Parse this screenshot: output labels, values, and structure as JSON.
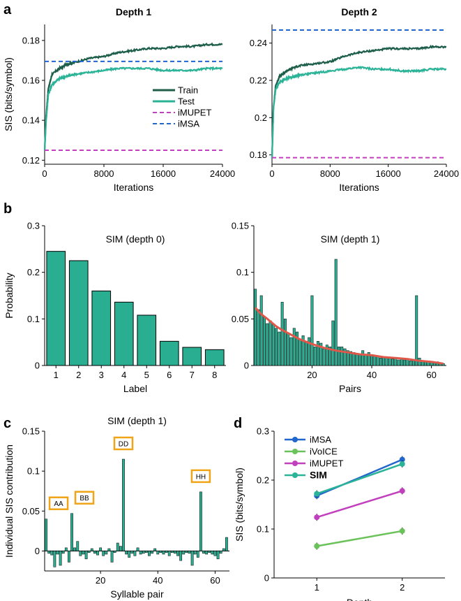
{
  "panels": {
    "a": {
      "label": "a"
    },
    "b": {
      "label": "b"
    },
    "c": {
      "label": "c"
    },
    "d": {
      "label": "d"
    }
  },
  "colors": {
    "train": "#1d5e4a",
    "test": "#2bb397",
    "imupet": "#c23fbd",
    "imsa": "#2166cc",
    "bar": "#2aae92",
    "curve": "#e0584a",
    "ivoice": "#6cc25a",
    "sim": "#2bb397",
    "callout": "#f0a418"
  },
  "chart_data": [
    {
      "id": "a1",
      "type": "line",
      "title": "Depth 1",
      "xlabel": "Iterations",
      "ylabel": "SIS (bits/symbol)",
      "xlim": [
        0,
        24000
      ],
      "ylim": [
        0.118,
        0.188
      ],
      "xticks": [
        0,
        8000,
        16000,
        24000
      ],
      "xtick_labels": [
        "0",
        "8000",
        "16000",
        "24000"
      ],
      "yticks": [
        0.12,
        0.14,
        0.16,
        0.18
      ],
      "ytick_labels": [
        "0.12",
        "0.14",
        "0.16",
        "0.18"
      ],
      "series": [
        {
          "name": "Train",
          "key": "train",
          "x": [
            0,
            200,
            500,
            1000,
            2000,
            3000,
            4000,
            6000,
            8000,
            10000,
            12000,
            14000,
            16000,
            18000,
            20000,
            22000,
            24000
          ],
          "y": [
            0.125,
            0.142,
            0.156,
            0.163,
            0.166,
            0.168,
            0.169,
            0.171,
            0.172,
            0.174,
            0.175,
            0.176,
            0.176,
            0.177,
            0.177,
            0.178,
            0.178
          ]
        },
        {
          "name": "Test",
          "key": "test",
          "x": [
            0,
            200,
            500,
            1000,
            2000,
            3000,
            4000,
            6000,
            8000,
            10000,
            12000,
            14000,
            16000,
            18000,
            20000,
            22000,
            24000
          ],
          "y": [
            0.125,
            0.14,
            0.153,
            0.158,
            0.161,
            0.162,
            0.163,
            0.164,
            0.165,
            0.166,
            0.166,
            0.166,
            0.165,
            0.165,
            0.165,
            0.166,
            0.166
          ]
        },
        {
          "name": "iMUPET",
          "key": "imupet",
          "dashed": true,
          "x": [
            0,
            24000
          ],
          "y": [
            0.125,
            0.125
          ]
        },
        {
          "name": "iMSA",
          "key": "imsa",
          "dashed": true,
          "x": [
            0,
            24000
          ],
          "y": [
            0.1695,
            0.1695
          ]
        }
      ],
      "legend": [
        "Train",
        "Test",
        "iMUPET",
        "iMSA"
      ]
    },
    {
      "id": "a2",
      "type": "line",
      "title": "Depth 2",
      "xlabel": "Iterations",
      "ylabel": "",
      "xlim": [
        0,
        24000
      ],
      "ylim": [
        0.175,
        0.25
      ],
      "xticks": [
        0,
        8000,
        16000,
        24000
      ],
      "xtick_labels": [
        "0",
        "8000",
        "16000",
        "24000"
      ],
      "yticks": [
        0.18,
        0.2,
        0.22,
        0.24
      ],
      "ytick_labels": [
        "0.18",
        "0.2",
        "0.22",
        "0.24"
      ],
      "series": [
        {
          "name": "Train",
          "key": "train",
          "x": [
            0,
            200,
            500,
            1000,
            2000,
            3000,
            4000,
            6000,
            8000,
            10000,
            12000,
            14000,
            16000,
            18000,
            20000,
            22000,
            24000
          ],
          "y": [
            0.178,
            0.205,
            0.217,
            0.222,
            0.225,
            0.227,
            0.228,
            0.229,
            0.23,
            0.233,
            0.235,
            0.236,
            0.237,
            0.237,
            0.237,
            0.238,
            0.238
          ]
        },
        {
          "name": "Test",
          "key": "test",
          "x": [
            0,
            200,
            500,
            1000,
            2000,
            3000,
            4000,
            6000,
            8000,
            10000,
            12000,
            14000,
            16000,
            18000,
            20000,
            22000,
            24000
          ],
          "y": [
            0.178,
            0.205,
            0.215,
            0.219,
            0.221,
            0.222,
            0.223,
            0.224,
            0.225,
            0.226,
            0.227,
            0.226,
            0.226,
            0.225,
            0.225,
            0.226,
            0.226
          ]
        },
        {
          "name": "iMUPET",
          "key": "imupet",
          "dashed": true,
          "x": [
            0,
            24000
          ],
          "y": [
            0.1785,
            0.1785
          ]
        },
        {
          "name": "iMSA",
          "key": "imsa",
          "dashed": true,
          "x": [
            0,
            24000
          ],
          "y": [
            0.247,
            0.247
          ]
        }
      ]
    },
    {
      "id": "b1",
      "type": "bar",
      "title": "SIM (depth 0)",
      "xlabel": "Label",
      "ylabel": "Probability",
      "categories": [
        "1",
        "2",
        "3",
        "4",
        "5",
        "6",
        "7",
        "8"
      ],
      "values": [
        0.245,
        0.225,
        0.16,
        0.136,
        0.108,
        0.052,
        0.039,
        0.034
      ],
      "ylim": [
        0,
        0.3
      ],
      "yticks": [
        0,
        0.1,
        0.2,
        0.3
      ],
      "ytick_labels": [
        "0",
        "0.1",
        "0.2",
        "0.3"
      ]
    },
    {
      "id": "b2",
      "type": "bar",
      "title": "SIM (depth 1)",
      "xlabel": "Pairs",
      "ylabel": "",
      "x": [
        1,
        2,
        3,
        4,
        5,
        6,
        7,
        8,
        9,
        10,
        11,
        12,
        13,
        14,
        15,
        16,
        17,
        18,
        19,
        20,
        21,
        22,
        23,
        24,
        25,
        26,
        27,
        28,
        29,
        30,
        31,
        32,
        33,
        34,
        35,
        36,
        37,
        38,
        39,
        40,
        41,
        42,
        43,
        44,
        45,
        46,
        47,
        48,
        49,
        50,
        51,
        52,
        53,
        54,
        55,
        56,
        57,
        58,
        59,
        60,
        61,
        62,
        63,
        64
      ],
      "values": [
        0.082,
        0.06,
        0.075,
        0.052,
        0.045,
        0.048,
        0.044,
        0.04,
        0.036,
        0.068,
        0.05,
        0.034,
        0.03,
        0.04,
        0.036,
        0.028,
        0.032,
        0.026,
        0.03,
        0.075,
        0.02,
        0.026,
        0.024,
        0.018,
        0.022,
        0.02,
        0.048,
        0.114,
        0.02,
        0.02,
        0.018,
        0.016,
        0.015,
        0.014,
        0.013,
        0.012,
        0.016,
        0.012,
        0.014,
        0.011,
        0.01,
        0.01,
        0.008,
        0.009,
        0.008,
        0.009,
        0.007,
        0.008,
        0.006,
        0.007,
        0.006,
        0.007,
        0.005,
        0.006,
        0.075,
        0.008,
        0.005,
        0.005,
        0.004,
        0.004,
        0.003,
        0.004,
        0.003,
        0.002
      ],
      "curve_x": [
        1,
        3,
        5,
        8,
        10,
        13,
        16,
        20,
        24,
        28,
        32,
        36,
        40,
        44,
        48,
        52,
        56,
        60,
        64
      ],
      "curve_y": [
        0.062,
        0.055,
        0.05,
        0.042,
        0.038,
        0.033,
        0.028,
        0.023,
        0.019,
        0.016,
        0.014,
        0.012,
        0.011,
        0.009,
        0.008,
        0.007,
        0.005,
        0.004,
        0.002
      ],
      "xlim": [
        0.5,
        65
      ],
      "ylim": [
        0,
        0.15
      ],
      "xticks": [
        20,
        40,
        60
      ],
      "xtick_labels": [
        "20",
        "40",
        "60"
      ],
      "yticks": [
        0,
        0.05,
        0.1,
        0.15
      ],
      "ytick_labels": [
        "0",
        "0.05",
        "0.1",
        "0.15"
      ]
    },
    {
      "id": "c",
      "type": "bar",
      "title": "SIM (depth 1)",
      "xlabel": "Syllable pair",
      "ylabel": "Individual SIS contribution",
      "x": [
        1,
        2,
        3,
        4,
        5,
        6,
        7,
        8,
        9,
        10,
        11,
        12,
        13,
        14,
        15,
        16,
        17,
        18,
        19,
        20,
        21,
        22,
        23,
        24,
        25,
        26,
        27,
        28,
        29,
        30,
        31,
        32,
        33,
        34,
        35,
        36,
        37,
        38,
        39,
        40,
        41,
        42,
        43,
        44,
        45,
        46,
        47,
        48,
        49,
        50,
        51,
        52,
        53,
        54,
        55,
        56,
        57,
        58,
        59,
        60,
        61,
        62,
        63,
        64
      ],
      "values": [
        0.04,
        -0.003,
        -0.005,
        -0.02,
        -0.004,
        -0.018,
        -0.003,
        0.004,
        -0.014,
        0.047,
        0.004,
        0.012,
        -0.006,
        -0.004,
        -0.01,
        -0.002,
        0.003,
        -0.003,
        -0.005,
        0.004,
        -0.006,
        -0.004,
        0.003,
        -0.014,
        -0.002,
        0.01,
        0.006,
        0.115,
        -0.004,
        -0.008,
        -0.003,
        -0.006,
        0.004,
        -0.004,
        -0.003,
        -0.002,
        -0.006,
        -0.003,
        0.003,
        -0.004,
        -0.002,
        -0.004,
        -0.002,
        -0.006,
        -0.002,
        -0.003,
        -0.006,
        -0.012,
        -0.004,
        -0.002,
        -0.003,
        -0.018,
        -0.004,
        -0.008,
        0.074,
        -0.003,
        -0.004,
        -0.002,
        -0.004,
        -0.006,
        -0.01,
        -0.003,
        0.003,
        0.017
      ],
      "annotations": [
        {
          "text": "AA",
          "x": 1
        },
        {
          "text": "BB",
          "x": 10
        },
        {
          "text": "DD",
          "x": 28
        },
        {
          "text": "HH",
          "x": 55
        }
      ],
      "xlim": [
        0.5,
        65
      ],
      "ylim": [
        -0.025,
        0.15
      ],
      "xticks": [
        20,
        40,
        60
      ],
      "xtick_labels": [
        "20",
        "40",
        "60"
      ],
      "yticks": [
        0,
        0.05,
        0.1,
        0.15
      ],
      "ytick_labels": [
        "0",
        "0.05",
        "0.1",
        "0.15"
      ]
    },
    {
      "id": "d",
      "type": "line",
      "title": "",
      "xlabel": "Depth",
      "ylabel": "SIS (bits/symbol)",
      "xlim": [
        0.5,
        2.5
      ],
      "ylim": [
        0,
        0.3
      ],
      "xticks": [
        1,
        2
      ],
      "xtick_labels": [
        "1",
        "2"
      ],
      "yticks": [
        0,
        0.1,
        0.2,
        0.3
      ],
      "ytick_labels": [
        "0",
        "0.1",
        "0.2",
        "0.3"
      ],
      "series": [
        {
          "name": "iMSA",
          "key": "imsa",
          "x": [
            1,
            2
          ],
          "y": [
            0.168,
            0.242
          ]
        },
        {
          "name": "iVoICE",
          "key": "ivoice",
          "x": [
            1,
            2
          ],
          "y": [
            0.065,
            0.096
          ]
        },
        {
          "name": "iMUPET",
          "key": "imupet",
          "x": [
            1,
            2
          ],
          "y": [
            0.124,
            0.178
          ]
        },
        {
          "name": "SIM",
          "key": "sim",
          "bold": true,
          "x": [
            1,
            2
          ],
          "y": [
            0.172,
            0.233
          ]
        }
      ],
      "legend": [
        "iMSA",
        "iVoICE",
        "iMUPET",
        "SIM"
      ]
    }
  ]
}
